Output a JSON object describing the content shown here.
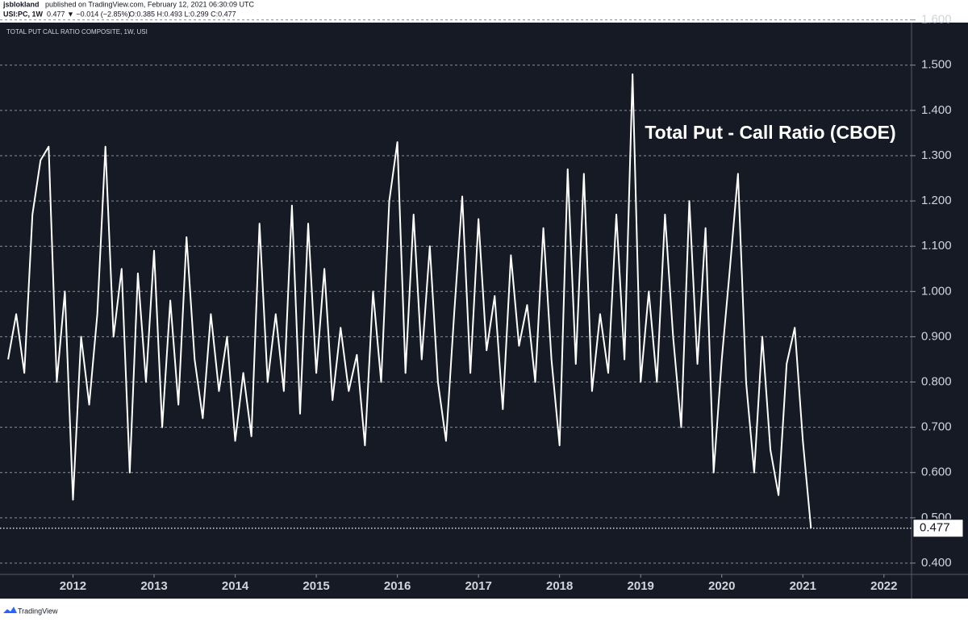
{
  "header": {
    "author": "jsblokland",
    "published": "published on TradingView.com, February 12, 2021 06:30:09 UTC",
    "symbol": "USI:PC, 1W",
    "quote": "0.477 ▼ −0.014 (−2.85%)",
    "ohlc": "O:0.385 H:0.493 L:0.299 C:0.477"
  },
  "footer": {
    "brand": "TradingView"
  },
  "chart_data": {
    "type": "line",
    "title": "TOTAL PUT CALL RATIO COMPOSITE, 1W, USI",
    "annotation": "Total Put - Call Ratio (CBOE)",
    "color": "#ffffff",
    "grid": true,
    "xlim": [
      2011.1,
      2022.34
    ],
    "xticks": [
      2012,
      2013,
      2014,
      2015,
      2016,
      2017,
      2018,
      2019,
      2020,
      2021,
      2022
    ],
    "ylim": [
      0.375,
      1.594
    ],
    "yticks": [
      {
        "value": 0.4,
        "label": "0.400"
      },
      {
        "value": 0.5,
        "label": "0.500"
      },
      {
        "value": 0.6,
        "label": "0.600"
      },
      {
        "value": 0.7,
        "label": "0.700"
      },
      {
        "value": 0.8,
        "label": "0.800"
      },
      {
        "value": 0.9,
        "label": "0.900"
      },
      {
        "value": 1.0,
        "label": "1.000"
      },
      {
        "value": 1.1,
        "label": "1.100"
      },
      {
        "value": 1.2,
        "label": "1.200"
      },
      {
        "value": 1.3,
        "label": "1.300"
      },
      {
        "value": 1.4,
        "label": "1.400"
      },
      {
        "value": 1.5,
        "label": "1.500"
      },
      {
        "value": 1.6,
        "label": "1.600"
      }
    ],
    "x": [
      2011.2,
      2011.3,
      2011.4,
      2011.5,
      2011.6,
      2011.7,
      2011.8,
      2011.9,
      2012.0,
      2012.1,
      2012.2,
      2012.3,
      2012.4,
      2012.5,
      2012.6,
      2012.7,
      2012.8,
      2012.9,
      2013.0,
      2013.1,
      2013.2,
      2013.3,
      2013.4,
      2013.5,
      2013.6,
      2013.7,
      2013.8,
      2013.9,
      2014.0,
      2014.1,
      2014.2,
      2014.3,
      2014.4,
      2014.5,
      2014.6,
      2014.7,
      2014.8,
      2014.9,
      2015.0,
      2015.1,
      2015.2,
      2015.3,
      2015.4,
      2015.5,
      2015.6,
      2015.7,
      2015.8,
      2015.9,
      2016.0,
      2016.1,
      2016.2,
      2016.3,
      2016.4,
      2016.5,
      2016.6,
      2016.7,
      2016.8,
      2016.9,
      2017.0,
      2017.1,
      2017.2,
      2017.3,
      2017.4,
      2017.5,
      2017.6,
      2017.7,
      2017.8,
      2017.9,
      2018.0,
      2018.1,
      2018.2,
      2018.3,
      2018.4,
      2018.5,
      2018.6,
      2018.7,
      2018.8,
      2018.9,
      2019.0,
      2019.1,
      2019.2,
      2019.3,
      2019.4,
      2019.5,
      2019.6,
      2019.7,
      2019.8,
      2019.9,
      2020.0,
      2020.1,
      2020.2,
      2020.3,
      2020.4,
      2020.5,
      2020.6,
      2020.7,
      2020.8,
      2020.9,
      2021.0,
      2021.1
    ],
    "values": [
      0.85,
      0.95,
      0.82,
      1.17,
      1.29,
      1.32,
      0.8,
      1.0,
      0.54,
      0.9,
      0.75,
      0.95,
      1.32,
      0.9,
      1.05,
      0.6,
      1.04,
      0.8,
      1.09,
      0.7,
      0.98,
      0.75,
      1.12,
      0.85,
      0.72,
      0.95,
      0.78,
      0.9,
      0.67,
      0.82,
      0.68,
      1.15,
      0.8,
      0.95,
      0.78,
      1.19,
      0.73,
      1.15,
      0.82,
      1.05,
      0.76,
      0.92,
      0.78,
      0.86,
      0.66,
      1.0,
      0.8,
      1.2,
      1.33,
      0.82,
      1.17,
      0.85,
      1.1,
      0.8,
      0.67,
      0.95,
      1.21,
      0.82,
      1.16,
      0.87,
      0.99,
      0.74,
      1.08,
      0.88,
      0.97,
      0.8,
      1.14,
      0.85,
      0.66,
      1.27,
      0.84,
      1.26,
      0.78,
      0.95,
      0.82,
      1.17,
      0.85,
      1.48,
      0.8,
      1.0,
      0.8,
      1.17,
      0.9,
      0.7,
      1.2,
      0.84,
      1.14,
      0.6,
      0.85,
      1.05,
      1.26,
      0.8,
      0.6,
      0.9,
      0.65,
      0.55,
      0.84,
      0.92,
      0.67,
      0.477
    ]
  }
}
